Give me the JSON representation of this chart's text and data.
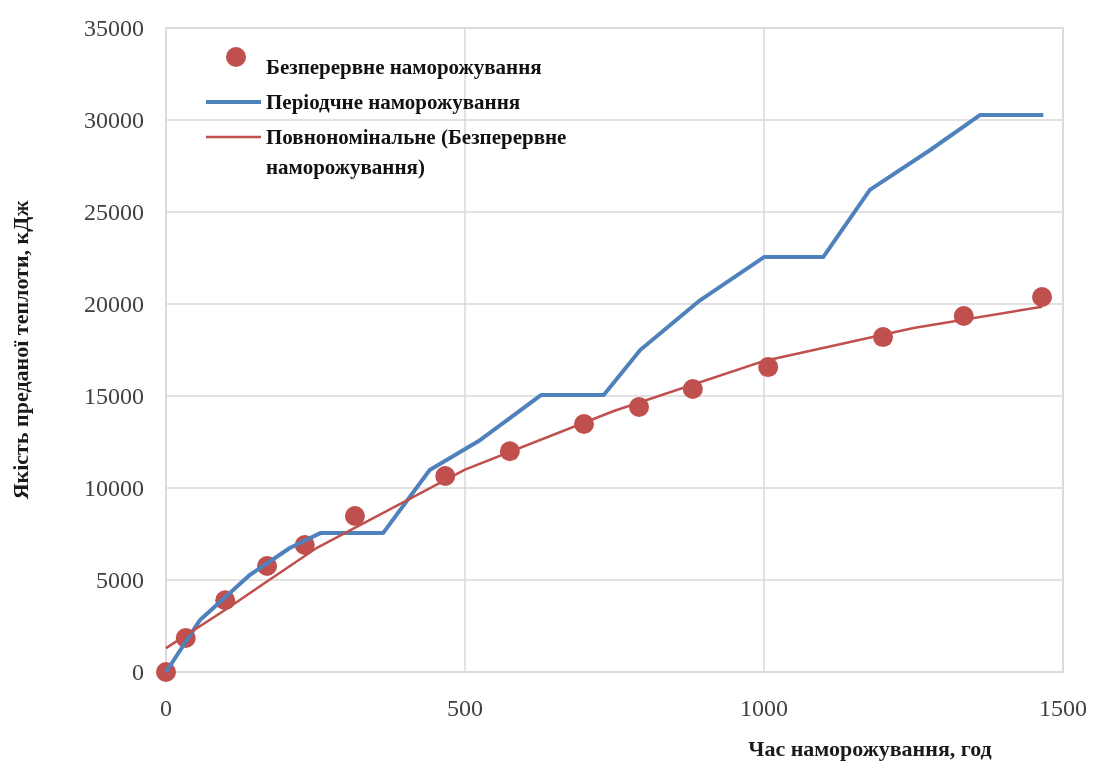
{
  "chart_data": {
    "type": "line",
    "xlabel": "Час наморожування, год",
    "ylabel": "Якість преданої теплоти, кДж",
    "xlim": [
      0,
      1500
    ],
    "xticks": [
      0,
      500,
      1000,
      1500
    ],
    "ylim": [
      0,
      35000
    ],
    "yticks": [
      0,
      5000,
      10000,
      15000,
      20000,
      25000,
      30000,
      35000
    ],
    "grid": true,
    "legend": "top left",
    "series": [
      {
        "name": "Безперервне наморожування",
        "type": "scatter",
        "marker": "circle",
        "color": "#c0504d",
        "x": [
          0,
          33,
          99,
          169,
          232,
          316,
          467,
          575,
          699,
          791,
          881,
          1007,
          1199,
          1334,
          1465
        ],
        "values": [
          0,
          1850,
          3900,
          5760,
          6900,
          8480,
          10650,
          12000,
          13480,
          14400,
          15380,
          16570,
          18200,
          19350,
          20380
        ]
      },
      {
        "name": "Періодчне наморожування",
        "color": "#4f81bd",
        "x": [
          0,
          57,
          140,
          207,
          258,
          363,
          441,
          525,
          627,
          732,
          793,
          893,
          1000,
          1099,
          1177,
          1278,
          1361,
          1467
        ],
        "values": [
          0,
          2830,
          5270,
          6740,
          7550,
          7550,
          10980,
          12600,
          15050,
          15050,
          17500,
          20200,
          22550,
          22550,
          26200,
          28370,
          30270,
          30270
        ]
      },
      {
        "name": "Повнономінальне (Безперервне наморожування)",
        "color": "#c0504d",
        "x": [
          0,
          100,
          250,
          500,
          750,
          1000,
          1250,
          1465
        ],
        "values": [
          1300,
          3400,
          6700,
          11000,
          14200,
          16900,
          18700,
          19850
        ]
      }
    ]
  }
}
